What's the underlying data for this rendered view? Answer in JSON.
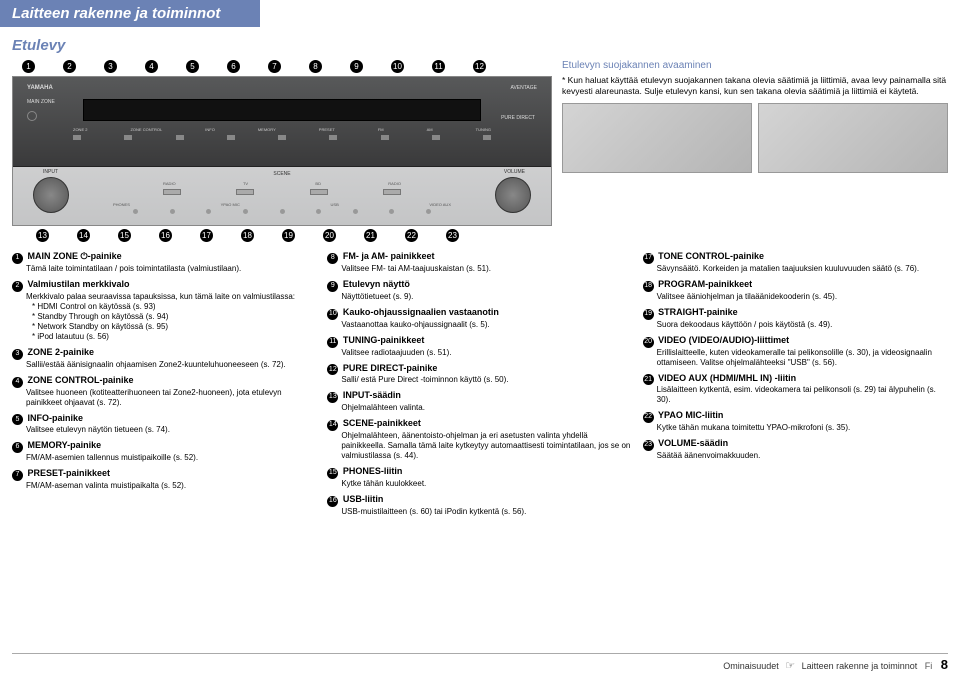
{
  "header": "Laitteen rakenne ja toiminnot",
  "subtitle": "Etulevy",
  "callouts_top": [
    "1",
    "2",
    "3",
    "4",
    "5",
    "6",
    "7",
    "8",
    "9",
    "10",
    "11",
    "12"
  ],
  "callouts_bottom": [
    "13",
    "14",
    "15",
    "16",
    "17",
    "18",
    "19",
    "20",
    "21",
    "22",
    "23"
  ],
  "panel": {
    "brand": "YAMAHA",
    "line": "AVENTAGE",
    "zone": "MAIN ZONE",
    "input": "INPUT",
    "volume": "VOLUME",
    "scene": "SCENE",
    "pure": "PURE DIRECT",
    "row_labels": [
      "ZONE 2",
      "ZONE CONTROL",
      "INFO",
      "MEMORY",
      "PRESET",
      "FM",
      "AM",
      "TUNING"
    ],
    "scene_labels": [
      "RADIO",
      "TV",
      "BD",
      "RADIO"
    ],
    "bottom_labels": [
      "PHONES",
      "YPAO MIC",
      "USB",
      "VIDEO AUX"
    ]
  },
  "topright": {
    "title": "Etulevyn suojakannen avaaminen",
    "body": "* Kun haluat käyttää etulevyn suojakannen takana olevia säätimiä ja liittimiä, avaa levy painamalla sitä kevyesti alareunasta. Sulje etulevyn kansi, kun sen takana olevia säätimiä ja liittimiä ei käytetä."
  },
  "col1": [
    {
      "n": "1",
      "h": "MAIN ZONE ⏻-painike",
      "b": [
        "Tämä laite toimintatilaan / pois toimintatilasta (valmiustilaan)."
      ]
    },
    {
      "n": "2",
      "h": "Valmiustilan merkkivalo",
      "b": [
        "Merkkivalo palaa seuraavissa tapauksissa, kun tämä laite on valmiustilassa:",
        "* HDMI Control on käytössä (s. 93)",
        "* Standby Through on käytössä (s. 94)",
        "* Network Standby on käytössä (s. 95)",
        "* iPod latautuu (s. 56)"
      ]
    },
    {
      "n": "3",
      "h": "ZONE 2-painike",
      "b": [
        "Sallii/estää äänisignaalin ohjaamisen Zone2-kuunteluhuoneeseen (s. 72)."
      ]
    },
    {
      "n": "4",
      "h": "ZONE CONTROL-painike",
      "b": [
        "Valitsee huoneen (kotiteatterihuoneen tai Zone2-huoneen), jota etulevyn painikkeet ohjaavat (s. 72)."
      ]
    },
    {
      "n": "5",
      "h": "INFO-painike",
      "b": [
        "Valitsee etulevyn näytön tietueen (s. 74)."
      ]
    },
    {
      "n": "6",
      "h": "MEMORY-painike",
      "b": [
        "FM/AM-asemien tallennus muistipaikoille (s. 52)."
      ]
    },
    {
      "n": "7",
      "h": "PRESET-painikkeet",
      "b": [
        "FM/AM-aseman valinta muistipaikalta (s. 52)."
      ]
    }
  ],
  "col2": [
    {
      "n": "8",
      "h": "FM- ja AM- painikkeet",
      "b": [
        "Valitsee FM- tai AM-taajuuskaistan (s. 51)."
      ]
    },
    {
      "n": "9",
      "h": "Etulevyn näyttö",
      "b": [
        "Näyttötietueet (s. 9)."
      ]
    },
    {
      "n": "10",
      "h": "Kauko-ohjaussignaalien vastaanotin",
      "b": [
        "Vastaanottaa kauko-ohjaussignaalit (s. 5)."
      ]
    },
    {
      "n": "11",
      "h": "TUNING-painikkeet",
      "b": [
        "Valitsee radiotaajuuden (s. 51)."
      ]
    },
    {
      "n": "12",
      "h": "PURE DIRECT-painike",
      "b": [
        "Salli/ estä Pure Direct -toiminnon käyttö (s. 50)."
      ]
    },
    {
      "n": "13",
      "h": "INPUT-säädin",
      "b": [
        "Ohjelmalähteen valinta."
      ]
    },
    {
      "n": "14",
      "h": "SCENE-painikkeet",
      "b": [
        "Ohjelmalähteen, äänentoisto-ohjelman ja eri asetusten valinta yhdellä painikkeella. Samalla tämä laite kytkeytyy automaattisesti toimintatilaan, jos se on valmiustilassa (s. 44)."
      ]
    },
    {
      "n": "15",
      "h": "PHONES-liitin",
      "b": [
        "Kytke tähän kuulokkeet."
      ]
    },
    {
      "n": "16",
      "h": "USB-liitin",
      "b": [
        "USB-muistilaitteen (s. 60) tai iPodin kytkentä (s. 56)."
      ]
    }
  ],
  "col3": [
    {
      "n": "17",
      "h": "TONE CONTROL-painike",
      "b": [
        "Sävynsäätö. Korkeiden ja matalien taajuuksien kuuluvuuden säätö (s. 76)."
      ]
    },
    {
      "n": "18",
      "h": "PROGRAM-painikkeet",
      "b": [
        "Valitsee ääniohjelman ja tilaäänidekooderin (s. 45)."
      ]
    },
    {
      "n": "19",
      "h": "STRAIGHT-painike",
      "b": [
        "Suora dekoodaus käyttöön / pois käytöstä (s. 49)."
      ]
    },
    {
      "n": "20",
      "h": "VIDEO (VIDEO/AUDIO)-liittimet",
      "b": [
        "Erillislaitteelle, kuten videokameralle tai pelikonsolille (s. 30), ja videosignaalin ottamiseen. Valitse ohjelmalähteeksi \"USB\" (s. 56)."
      ]
    },
    {
      "n": "21",
      "h": "VIDEO AUX (HDMI/MHL IN) -liitin",
      "b": [
        "Lisälaitteen kytkentä, esim. videokamera tai pelikonsoli (s. 29) tai älypuhelin (s. 30)."
      ]
    },
    {
      "n": "22",
      "h": "YPAO MIC-liitin",
      "b": [
        "Kytke tähän mukana toimitettu YPAO-mikrofoni (s. 35)."
      ]
    },
    {
      "n": "23",
      "h": "VOLUME-säädin",
      "b": [
        "Säätää äänenvoimakkuuden."
      ]
    }
  ],
  "footer": {
    "left": "Ominaisuudet",
    "right": "Laitteen rakenne ja toiminnot",
    "lang": "Fi",
    "page": "8"
  }
}
